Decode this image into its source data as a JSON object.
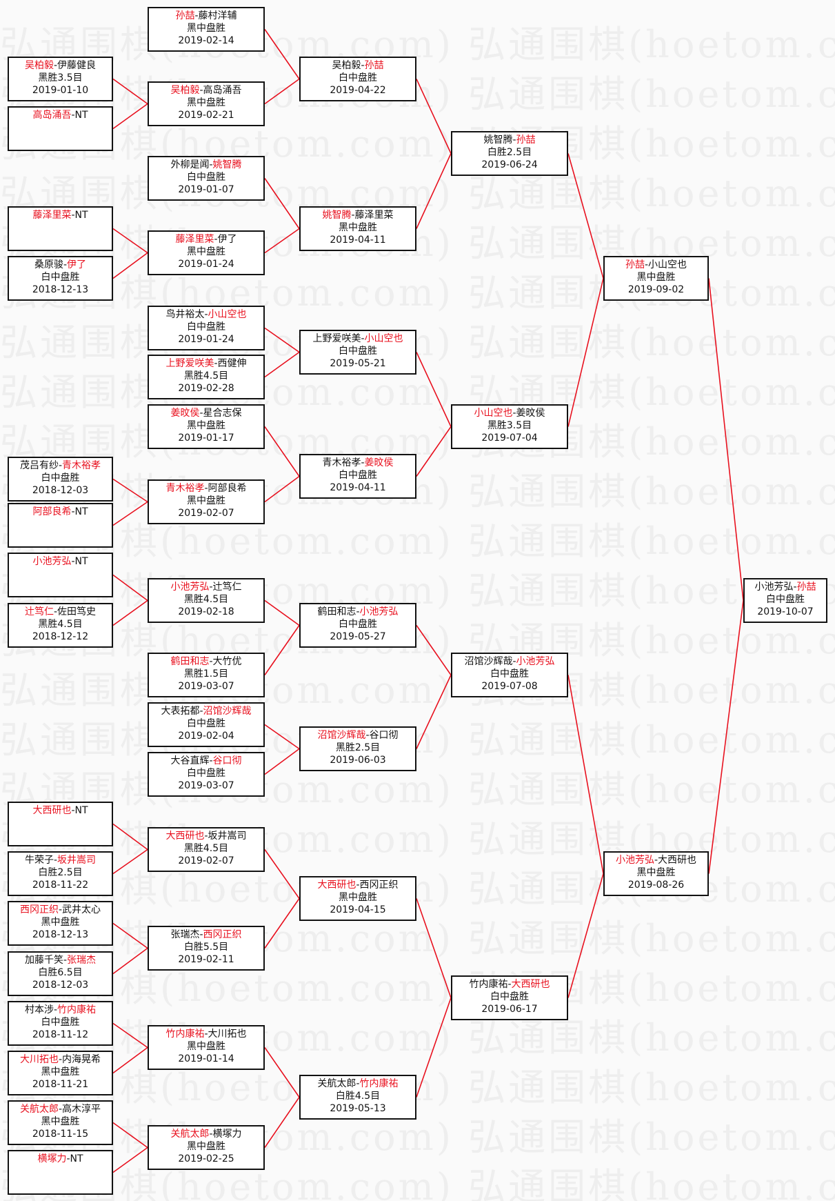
{
  "watermark": "弘通围棋(hoetom.com)",
  "colors": {
    "winner": "#e8101e",
    "line": "#e8101e",
    "border": "#111111"
  },
  "separator": "-",
  "rounds": [
    [
      {
        "p1": "吴柏毅",
        "p2": "伊藤健良",
        "winner": 1,
        "result": "黑胜3.5目",
        "date": "2019-01-10"
      },
      {
        "p1": "高岛涌吾",
        "p2": "NT",
        "winner": 1
      },
      {
        "p1": "藤泽里菜",
        "p2": "NT",
        "winner": 1
      },
      {
        "p1": "桑原骏",
        "p2": "伊了",
        "winner": 2,
        "result": "白中盘胜",
        "date": "2018-12-13"
      },
      {
        "p1": "茂吕有纱",
        "p2": "青木裕孝",
        "winner": 2,
        "result": "白中盘胜",
        "date": "2018-12-03"
      },
      {
        "p1": "阿部良希",
        "p2": "NT",
        "winner": 1
      },
      {
        "p1": "小池芳弘",
        "p2": "NT",
        "winner": 1
      },
      {
        "p1": "辻笃仁",
        "p2": "佐田笃史",
        "winner": 1,
        "result": "黑胜4.5目",
        "date": "2018-12-12"
      },
      {
        "p1": "大西研也",
        "p2": "NT",
        "winner": 1
      },
      {
        "p1": "牛荣子",
        "p2": "坂井嵩司",
        "winner": 2,
        "result": "白胜2.5目",
        "date": "2018-11-22"
      },
      {
        "p1": "西冈正织",
        "p2": "武井太心",
        "winner": 1,
        "result": "黑中盘胜",
        "date": "2018-12-13"
      },
      {
        "p1": "加藤千笑",
        "p2": "张瑞杰",
        "winner": 2,
        "result": "白胜6.5目",
        "date": "2018-12-03"
      },
      {
        "p1": "村本涉",
        "p2": "竹内康祐",
        "winner": 2,
        "result": "白中盘胜",
        "date": "2018-11-12"
      },
      {
        "p1": "大川拓也",
        "p2": "内海晃希",
        "winner": 1,
        "result": "黑中盘胜",
        "date": "2018-11-21"
      },
      {
        "p1": "关航太郎",
        "p2": "高木淳平",
        "winner": 1,
        "result": "黑中盘胜",
        "date": "2018-11-15"
      },
      {
        "p1": "横塚力",
        "p2": "NT",
        "winner": 1
      }
    ],
    [
      {
        "p1": "孙喆",
        "p2": "藤村洋辅",
        "winner": 1,
        "result": "黑中盘胜",
        "date": "2019-02-14"
      },
      {
        "p1": "吴柏毅",
        "p2": "高岛涌吾",
        "winner": 1,
        "result": "黑中盘胜",
        "date": "2019-02-21"
      },
      {
        "p1": "外柳是闻",
        "p2": "姚智腾",
        "winner": 2,
        "result": "白中盘胜",
        "date": "2019-01-07"
      },
      {
        "p1": "藤泽里菜",
        "p2": "伊了",
        "winner": 1,
        "result": "黑中盘胜",
        "date": "2019-01-24"
      },
      {
        "p1": "鸟井裕太",
        "p2": "小山空也",
        "winner": 2,
        "result": "白中盘胜",
        "date": "2019-01-24"
      },
      {
        "p1": "上野爱咲美",
        "p2": "西健伸",
        "winner": 1,
        "result": "黑胜4.5目",
        "date": "2019-02-28"
      },
      {
        "p1": "姜旼侯",
        "p2": "星合志保",
        "winner": 1,
        "result": "黑中盘胜",
        "date": "2019-01-17"
      },
      {
        "p1": "青木裕孝",
        "p2": "阿部良希",
        "winner": 1,
        "result": "黑中盘胜",
        "date": "2019-02-07"
      },
      {
        "p1": "小池芳弘",
        "p2": "辻笃仁",
        "winner": 1,
        "result": "黑胜4.5目",
        "date": "2019-02-18"
      },
      {
        "p1": "鹤田和志",
        "p2": "大竹优",
        "winner": 1,
        "result": "黑胜1.5目",
        "date": "2019-03-07"
      },
      {
        "p1": "大表拓都",
        "p2": "沼馆沙辉哉",
        "winner": 2,
        "result": "白中盘胜",
        "date": "2019-02-04"
      },
      {
        "p1": "大谷直辉",
        "p2": "谷口彻",
        "winner": 2,
        "result": "白中盘胜",
        "date": "2019-03-07"
      },
      {
        "p1": "大西研也",
        "p2": "坂井嵩司",
        "winner": 1,
        "result": "黑胜4.5目",
        "date": "2019-02-07"
      },
      {
        "p1": "张瑞杰",
        "p2": "西冈正织",
        "winner": 2,
        "result": "白胜5.5目",
        "date": "2019-02-11"
      },
      {
        "p1": "竹内康祐",
        "p2": "大川拓也",
        "winner": 1,
        "result": "黑中盘胜",
        "date": "2019-01-14"
      },
      {
        "p1": "关航太郎",
        "p2": "横塚力",
        "winner": 1,
        "result": "黑中盘胜",
        "date": "2019-02-25"
      }
    ],
    [
      {
        "p1": "吴柏毅",
        "p2": "孙喆",
        "winner": 2,
        "result": "白中盘胜",
        "date": "2019-04-22"
      },
      {
        "p1": "姚智腾",
        "p2": "藤泽里菜",
        "winner": 1,
        "result": "黑中盘胜",
        "date": "2019-04-11"
      },
      {
        "p1": "上野爱咲美",
        "p2": "小山空也",
        "winner": 2,
        "result": "白中盘胜",
        "date": "2019-05-21"
      },
      {
        "p1": "青木裕孝",
        "p2": "姜旼侯",
        "winner": 2,
        "result": "白中盘胜",
        "date": "2019-04-11"
      },
      {
        "p1": "鹤田和志",
        "p2": "小池芳弘",
        "winner": 2,
        "result": "白中盘胜",
        "date": "2019-05-27"
      },
      {
        "p1": "沼馆沙辉哉",
        "p2": "谷口彻",
        "winner": 1,
        "result": "黑胜2.5目",
        "date": "2019-06-03"
      },
      {
        "p1": "大西研也",
        "p2": "西冈正织",
        "winner": 1,
        "result": "黑中盘胜",
        "date": "2019-04-15"
      },
      {
        "p1": "关航太郎",
        "p2": "竹内康祐",
        "winner": 2,
        "result": "白胜4.5目",
        "date": "2019-05-13"
      }
    ],
    [
      {
        "p1": "姚智腾",
        "p2": "孙喆",
        "winner": 2,
        "result": "白胜2.5目",
        "date": "2019-06-24"
      },
      {
        "p1": "小山空也",
        "p2": "姜旼侯",
        "winner": 1,
        "result": "黑胜3.5目",
        "date": "2019-07-04"
      },
      {
        "p1": "沼馆沙辉哉",
        "p2": "小池芳弘",
        "winner": 2,
        "result": "白中盘胜",
        "date": "2019-07-08"
      },
      {
        "p1": "竹内康祐",
        "p2": "大西研也",
        "winner": 2,
        "result": "白中盘胜",
        "date": "2019-06-17"
      }
    ],
    [
      {
        "p1": "孙喆",
        "p2": "小山空也",
        "winner": 1,
        "result": "黑中盘胜",
        "date": "2019-09-02"
      },
      {
        "p1": "小池芳弘",
        "p2": "大西研也",
        "winner": 1,
        "result": "黑中盘胜",
        "date": "2019-08-26"
      }
    ],
    [
      {
        "p1": "小池芳弘",
        "p2": "孙喆",
        "winner": 2,
        "result": "白中盘胜",
        "date": "2019-10-07"
      }
    ]
  ]
}
